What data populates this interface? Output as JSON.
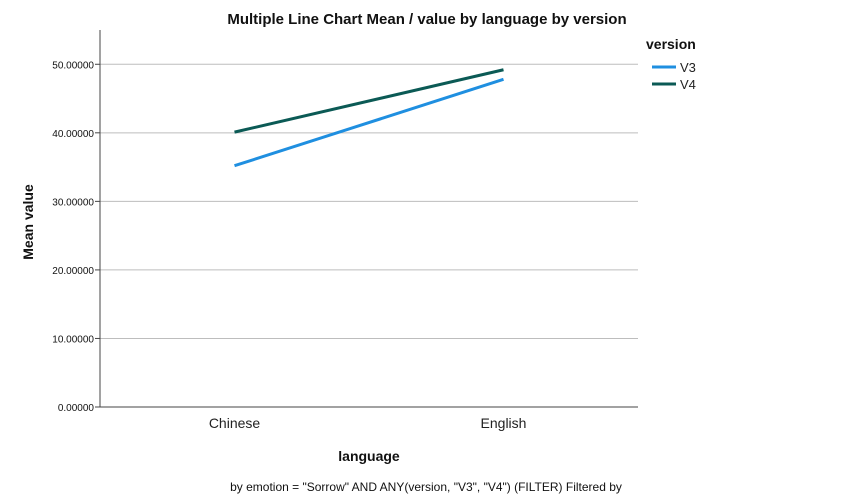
{
  "chart_data": {
    "type": "line",
    "title": "Multiple Line Chart Mean /  value by language by version",
    "xlabel": "language",
    "ylabel": "Mean value",
    "categories": [
      "Chinese",
      "English"
    ],
    "ylim": [
      0,
      55
    ],
    "yticks": [
      "0.00000",
      "10.00000",
      "20.00000",
      "30.00000",
      "40.00000",
      "50.00000"
    ],
    "ytick_values": [
      0,
      10,
      20,
      30,
      40,
      50
    ],
    "grid": true,
    "legend": {
      "title": "version",
      "position": "top-right"
    },
    "series": [
      {
        "name": "V3",
        "values": [
          35.2,
          47.8
        ],
        "color": "#1f8fe0"
      },
      {
        "name": "V4",
        "values": [
          40.1,
          49.2
        ],
        "color": "#0b5a55"
      }
    ],
    "footnote": "by emotion = \"Sorrow\" AND ANY(version, \"V3\", \"V4\") (FILTER) Filtered by"
  }
}
